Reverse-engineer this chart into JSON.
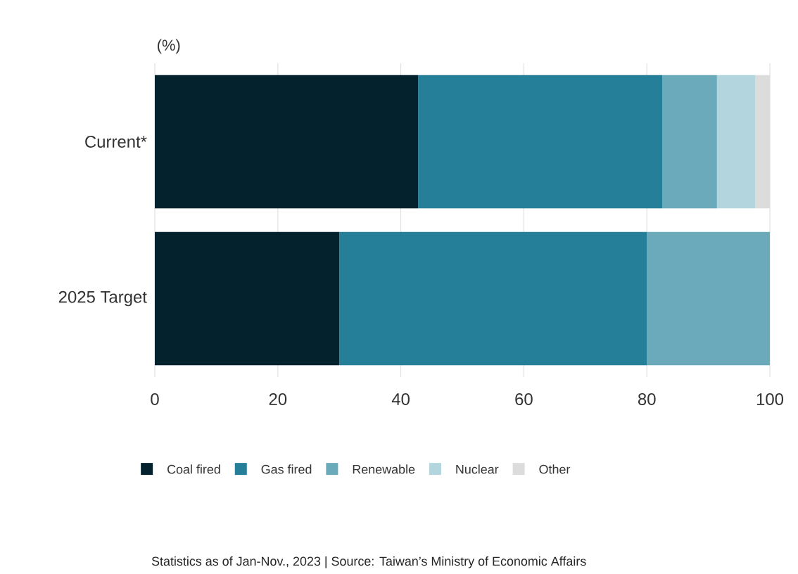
{
  "chart_data": {
    "type": "bar",
    "orientation": "horizontal",
    "stacked": true,
    "xlabel": "(%)",
    "categories": [
      "Current*",
      "2025 Target"
    ],
    "series": [
      {
        "name": "Coal fired",
        "color": "#04222e",
        "values": [
          42.8,
          30
        ]
      },
      {
        "name": "Gas fired",
        "color": "#257f99",
        "values": [
          39.7,
          50
        ]
      },
      {
        "name": "Renewable",
        "color": "#6aaabb",
        "values": [
          8.9,
          20
        ]
      },
      {
        "name": "Nuclear",
        "color": "#b3d5de",
        "values": [
          6.2,
          null
        ]
      },
      {
        "name": "Other",
        "color": "#dcdcdc",
        "values": [
          2.4,
          null
        ]
      }
    ],
    "xlim": [
      0,
      100
    ],
    "xticks": [
      0,
      20,
      40,
      60,
      80,
      100
    ],
    "grid": "x",
    "legend": "bottom",
    "annotations": [
      "Statistics as of Jan-Nov., 2023 | Source: Taiwan’s Ministry of Economic Affairs"
    ]
  }
}
